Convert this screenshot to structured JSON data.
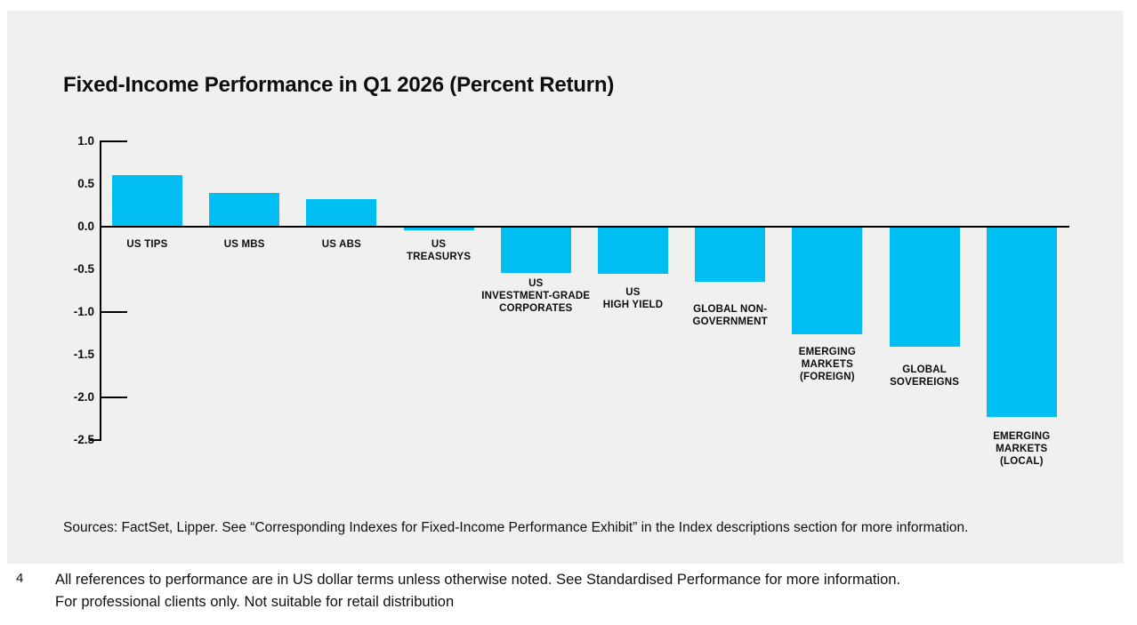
{
  "title": "Fixed-Income Performance in Q1 2026 (Percent Return)",
  "chart_data": {
    "type": "bar",
    "title": "Fixed-Income Performance in Q1 2026 (Percent Return)",
    "categories": [
      "US TIPS",
      "US MBS",
      "US ABS",
      "US TREASURYS",
      "US INVESTMENT-GRADE CORPORATES",
      "US HIGH YIELD",
      "GLOBAL NON-GOVERNMENT",
      "EMERGING MARKETS (FOREIGN)",
      "GLOBAL SOVEREIGNS",
      "EMERGING MARKETS (LOCAL)"
    ],
    "category_label_lines": [
      [
        "US TIPS"
      ],
      [
        "US MBS"
      ],
      [
        "US ABS"
      ],
      [
        "US",
        "TREASURYS"
      ],
      [
        "US",
        "INVESTMENT-GRADE",
        "CORPORATES"
      ],
      [
        "US",
        "HIGH YIELD"
      ],
      [
        "GLOBAL NON-",
        "GOVERNMENT"
      ],
      [
        "EMERGING",
        "MARKETS",
        "(FOREIGN)"
      ],
      [
        "GLOBAL",
        "SOVEREIGNS"
      ],
      [
        "EMERGING",
        "MARKETS",
        "(LOCAL)"
      ]
    ],
    "values": [
      0.6,
      0.4,
      0.32,
      -0.04,
      -0.54,
      -0.55,
      -0.65,
      -1.26,
      -1.41,
      -2.23
    ],
    "ylabel": "",
    "xlabel": "",
    "ylim": [
      -2.5,
      1.0
    ],
    "yticks": [
      1.0,
      0.5,
      0.0,
      -0.5,
      -1.0,
      -1.5,
      -2.0,
      -2.5
    ],
    "ytick_labels": [
      "1.0",
      "0.5",
      "0.0",
      "-0.5",
      "-1.0",
      "-1.5",
      "-2.0",
      "-2.5"
    ],
    "major_right_ticks": [
      1.0,
      -1.0,
      -2.0
    ],
    "bar_color": "#00bdf2",
    "axis_color": "#000000",
    "grid": false,
    "legend": null
  },
  "source_note": "Sources: FactSet, Lipper. See “Corresponding Indexes for Fixed-Income Performance Exhibit” in the Index descriptions section for more information.",
  "footer": {
    "note_number": "4",
    "line1": "All references to performance are in US dollar terms unless otherwise noted. See Standardised Performance for more information.",
    "line2": "For professional clients only. Not suitable for retail distribution"
  }
}
